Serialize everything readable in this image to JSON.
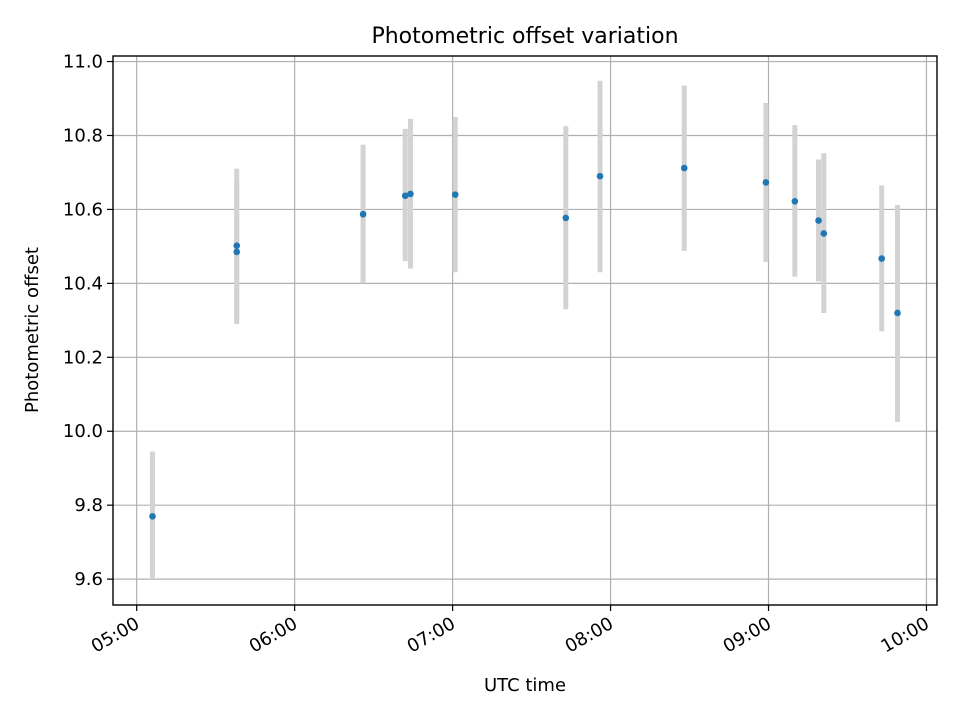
{
  "chart_data": {
    "type": "scatter",
    "title": "Photometric offset variation",
    "xlabel": "UTC time",
    "ylabel": "Photometric offset",
    "xlim": [
      "04:51",
      "10:04"
    ],
    "ylim": [
      9.53,
      11.015
    ],
    "grid": true,
    "x_ticks": [
      "05:00",
      "06:00",
      "07:00",
      "08:00",
      "09:00",
      "10:00"
    ],
    "y_ticks": [
      "9.6",
      "9.8",
      "10.0",
      "10.2",
      "10.4",
      "10.6",
      "10.8",
      "11.0"
    ],
    "marker_color": "#1f77b4",
    "errorbar_color": "#d3d3d3",
    "points": [
      {
        "time": "05:06",
        "offset": 9.77,
        "low": 9.6,
        "high": 9.945
      },
      {
        "time": "05:38",
        "offset": 10.485,
        "low": 10.29,
        "high": 10.68
      },
      {
        "time": "05:38",
        "offset": 10.502,
        "low": 10.3,
        "high": 10.71
      },
      {
        "time": "06:26",
        "offset": 10.587,
        "low": 10.4,
        "high": 10.775
      },
      {
        "time": "06:42",
        "offset": 10.637,
        "low": 10.46,
        "high": 10.818
      },
      {
        "time": "06:44",
        "offset": 10.642,
        "low": 10.44,
        "high": 10.845
      },
      {
        "time": "07:01",
        "offset": 10.64,
        "low": 10.43,
        "high": 10.85
      },
      {
        "time": "07:43",
        "offset": 10.577,
        "low": 10.33,
        "high": 10.825
      },
      {
        "time": "07:56",
        "offset": 10.69,
        "low": 10.43,
        "high": 10.948
      },
      {
        "time": "08:28",
        "offset": 10.712,
        "low": 10.488,
        "high": 10.935
      },
      {
        "time": "08:59",
        "offset": 10.673,
        "low": 10.458,
        "high": 10.888
      },
      {
        "time": "09:10",
        "offset": 10.622,
        "low": 10.418,
        "high": 10.828
      },
      {
        "time": "09:19",
        "offset": 10.57,
        "low": 10.405,
        "high": 10.735
      },
      {
        "time": "09:21",
        "offset": 10.535,
        "low": 10.32,
        "high": 10.752
      },
      {
        "time": "09:43",
        "offset": 10.467,
        "low": 10.27,
        "high": 10.665
      },
      {
        "time": "09:49",
        "offset": 10.32,
        "low": 10.025,
        "high": 10.612
      }
    ]
  }
}
